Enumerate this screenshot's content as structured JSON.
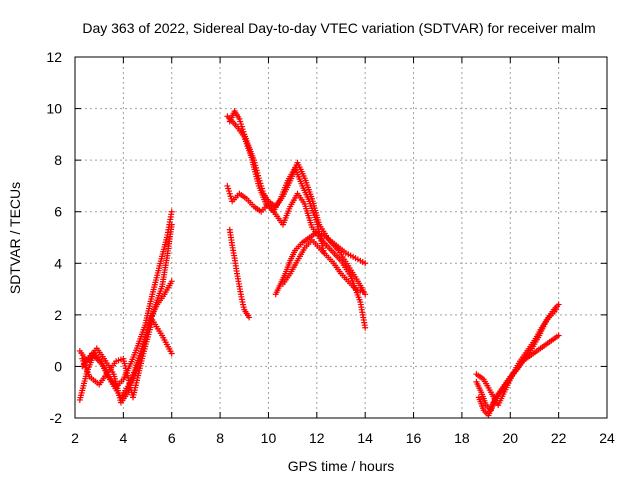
{
  "chart_data": {
    "type": "scatter",
    "title": "Day 363 of 2022, Sidereal Day-to-day VTEC variation (SDTVAR) for receiver malm",
    "xlabel": "GPS time / hours",
    "ylabel": "SDTVAR / TECUs",
    "xlim": [
      2,
      24
    ],
    "ylim": [
      -2,
      12
    ],
    "xticks": [
      2,
      4,
      6,
      8,
      10,
      12,
      14,
      16,
      18,
      20,
      22,
      24
    ],
    "yticks": [
      -2,
      0,
      2,
      4,
      6,
      8,
      10,
      12
    ],
    "grid": true,
    "marker": "+",
    "color": "#ff0000",
    "series": [
      {
        "name": "seg1",
        "x": [
          2.2,
          2.5,
          2.8,
          3.1,
          3.4,
          3.7,
          4.0,
          4.3,
          4.6,
          4.9,
          5.2,
          5.5,
          5.8,
          6.0
        ],
        "y": [
          -1.3,
          -0.2,
          0.5,
          0.2,
          -0.4,
          -0.8,
          -0.5,
          0.1,
          0.8,
          1.6,
          2.8,
          3.9,
          5.0,
          6.0
        ]
      },
      {
        "name": "seg2",
        "x": [
          2.2,
          2.5,
          2.9,
          3.2,
          3.6,
          3.9,
          4.2,
          4.5,
          4.8,
          5.1,
          5.4,
          5.7,
          6.0
        ],
        "y": [
          0.6,
          0.2,
          0.7,
          0.3,
          -0.3,
          -1.4,
          -1.0,
          -0.2,
          0.6,
          1.8,
          2.4,
          2.8,
          3.3
        ]
      },
      {
        "name": "seg3",
        "x": [
          2.3,
          2.6,
          3.0,
          3.3,
          3.7,
          4.0,
          4.4,
          4.8,
          5.2,
          5.6,
          6.0
        ],
        "y": [
          0.3,
          -0.4,
          -0.7,
          -0.3,
          0.2,
          0.3,
          -1.2,
          0.4,
          1.8,
          1.2,
          0.5
        ]
      },
      {
        "name": "seg4",
        "x": [
          2.3,
          2.7,
          3.1,
          3.5,
          3.9,
          4.3,
          4.7,
          5.0,
          5.3,
          5.6,
          5.8,
          6.0
        ],
        "y": [
          0.0,
          0.5,
          0.1,
          -0.6,
          -1.2,
          -0.6,
          0.5,
          1.4,
          2.3,
          3.1,
          4.2,
          5.5
        ]
      },
      {
        "name": "seg5",
        "x": [
          8.4,
          8.6,
          8.8,
          9.0,
          9.2,
          9.4,
          9.6,
          9.8,
          10.0,
          10.3,
          10.6,
          10.9,
          11.2,
          11.5,
          11.8,
          12.1,
          12.5,
          12.9,
          13.3,
          13.7,
          14.0
        ],
        "y": [
          9.5,
          9.9,
          9.6,
          9.0,
          8.5,
          8.0,
          7.3,
          6.7,
          6.4,
          6.2,
          6.6,
          7.2,
          7.9,
          7.3,
          6.5,
          5.5,
          4.9,
          4.5,
          3.9,
          3.3,
          2.8
        ]
      },
      {
        "name": "seg6",
        "x": [
          8.3,
          8.5,
          8.7,
          9.0,
          9.3,
          9.6,
          9.9,
          10.2,
          10.5,
          10.8,
          11.1,
          11.4,
          11.7,
          12.0,
          12.3
        ],
        "y": [
          9.7,
          9.5,
          9.3,
          8.9,
          8.1,
          7.0,
          6.3,
          6.0,
          6.5,
          7.2,
          7.7,
          7.0,
          6.4,
          5.6,
          4.4
        ]
      },
      {
        "name": "seg7",
        "x": [
          8.3,
          8.5,
          8.8,
          9.1,
          9.4,
          9.7,
          10.0,
          10.3,
          10.6,
          10.9,
          11.2,
          11.5,
          11.8,
          12.2,
          12.6,
          13.0,
          13.4,
          13.8,
          14.0
        ],
        "y": [
          7.0,
          6.4,
          6.7,
          6.5,
          6.2,
          6.0,
          6.3,
          5.9,
          5.5,
          6.2,
          6.7,
          6.3,
          5.4,
          4.9,
          4.5,
          4.1,
          3.5,
          2.5,
          1.5
        ]
      },
      {
        "name": "seg8",
        "x": [
          8.4,
          8.5,
          8.6,
          8.7,
          8.8,
          8.9,
          9.0,
          9.2
        ],
        "y": [
          5.3,
          4.7,
          4.2,
          3.6,
          3.1,
          2.6,
          2.2,
          1.9
        ]
      },
      {
        "name": "seg9",
        "x": [
          10.3,
          10.5,
          10.7,
          10.9,
          11.1,
          11.4,
          11.7,
          12.0,
          12.4,
          12.8,
          13.2,
          13.6,
          14.0
        ],
        "y": [
          2.8,
          3.2,
          3.6,
          4.1,
          4.5,
          4.8,
          5.0,
          5.2,
          5.0,
          4.7,
          4.4,
          4.2,
          4.0
        ]
      },
      {
        "name": "seg10",
        "x": [
          10.6,
          10.9,
          11.2,
          11.5,
          11.8,
          12.1,
          12.4,
          12.7,
          13.0,
          13.3,
          13.6,
          13.9
        ],
        "y": [
          3.2,
          3.6,
          4.1,
          4.6,
          4.9,
          4.6,
          4.3,
          4.0,
          3.6,
          3.3,
          3.0,
          2.9
        ]
      },
      {
        "name": "seg11",
        "x": [
          18.6,
          18.8,
          19.0,
          19.2,
          19.4,
          19.7,
          20.0,
          20.3,
          20.6,
          20.9,
          21.2,
          21.5,
          21.8,
          22.0
        ],
        "y": [
          -0.6,
          -1.0,
          -1.5,
          -1.7,
          -1.2,
          -0.8,
          -0.4,
          -0.1,
          0.3,
          0.7,
          1.2,
          1.8,
          2.2,
          2.4
        ]
      },
      {
        "name": "seg12",
        "x": [
          18.7,
          18.9,
          19.1,
          19.3,
          19.6,
          19.9,
          20.2,
          20.5,
          20.8,
          21.1,
          21.4,
          21.7,
          22.0
        ],
        "y": [
          -1.2,
          -1.7,
          -1.9,
          -1.4,
          -1.0,
          -0.6,
          -0.2,
          0.2,
          0.4,
          0.6,
          0.8,
          1.0,
          1.2
        ]
      },
      {
        "name": "seg13",
        "x": [
          18.6,
          18.9,
          19.2,
          19.5,
          19.8,
          20.1,
          20.4,
          20.7,
          21.0,
          21.3,
          21.6,
          21.9
        ],
        "y": [
          -0.3,
          -0.5,
          -1.0,
          -1.5,
          -0.9,
          -0.3,
          0.2,
          0.6,
          1.0,
          1.5,
          1.9,
          2.2
        ]
      }
    ]
  }
}
